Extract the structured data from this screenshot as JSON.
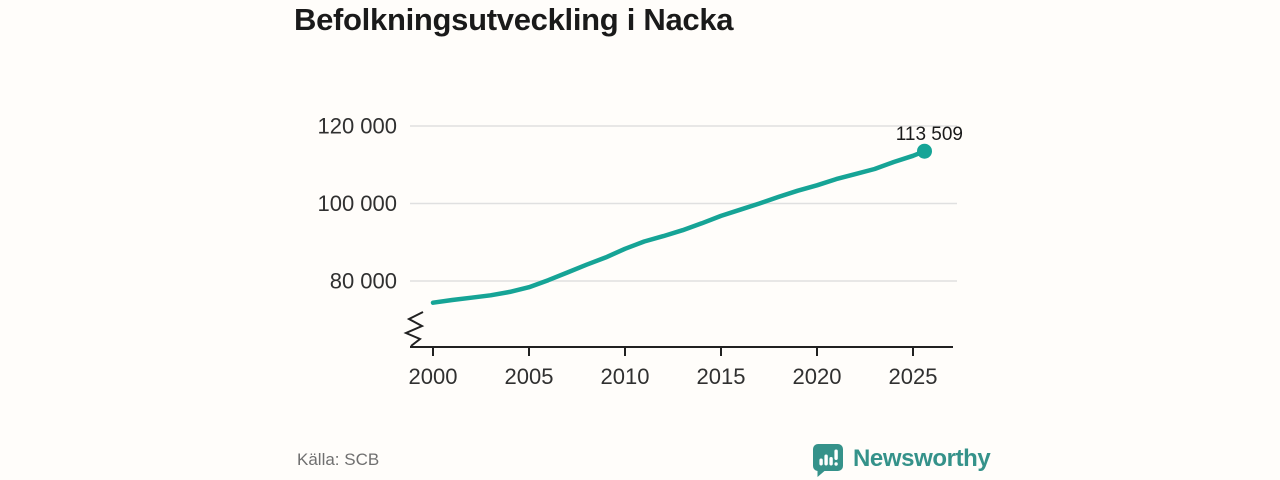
{
  "header": {
    "title": "Befolkningsutveckling i Nacka"
  },
  "footer": {
    "source": "Källa: SCB",
    "brand_name": "Newsworthy"
  },
  "colors": {
    "accent_teal": "#16a496",
    "logo_teal": "#35928a",
    "grid": "#e0e0e0",
    "axis": "#212121",
    "text_dark": "#1a1a1a",
    "text_gray": "#707070",
    "background": "#fffdfa"
  },
  "chart_data": {
    "type": "line",
    "title": "Befolkningsutveckling i Nacka",
    "source": "SCB",
    "x_axis": {
      "ticks": [
        "2000",
        "2005",
        "2010",
        "2015",
        "2020",
        "2025"
      ],
      "range": [
        2000,
        2026.3
      ]
    },
    "y_axis": {
      "ticks": [
        {
          "value": 80000,
          "label": "80 000"
        },
        {
          "value": 100000,
          "label": "100 000"
        },
        {
          "value": 120000,
          "label": "120 000"
        }
      ],
      "axis_break": true,
      "grid": true
    },
    "series": [
      {
        "name": "population",
        "color": "#16a496",
        "x": [
          2000,
          2001,
          2002,
          2003,
          2004,
          2005,
          2006,
          2007,
          2008,
          2009,
          2010,
          2011,
          2012,
          2013,
          2014,
          2015,
          2016,
          2017,
          2018,
          2019,
          2020,
          2021,
          2022,
          2023,
          2024,
          2025,
          2025.6
        ],
        "values": [
          74400,
          75100,
          75700,
          76300,
          77200,
          78400,
          80200,
          82200,
          84200,
          86100,
          88300,
          90200,
          91600,
          93100,
          94900,
          96800,
          98400,
          100000,
          101700,
          103300,
          104700,
          106300,
          107600,
          108900,
          110700,
          112300,
          113509
        ]
      }
    ],
    "annotation": {
      "label": "113 509",
      "value": 113509,
      "x": 2025.6
    },
    "legend_position": "none"
  }
}
